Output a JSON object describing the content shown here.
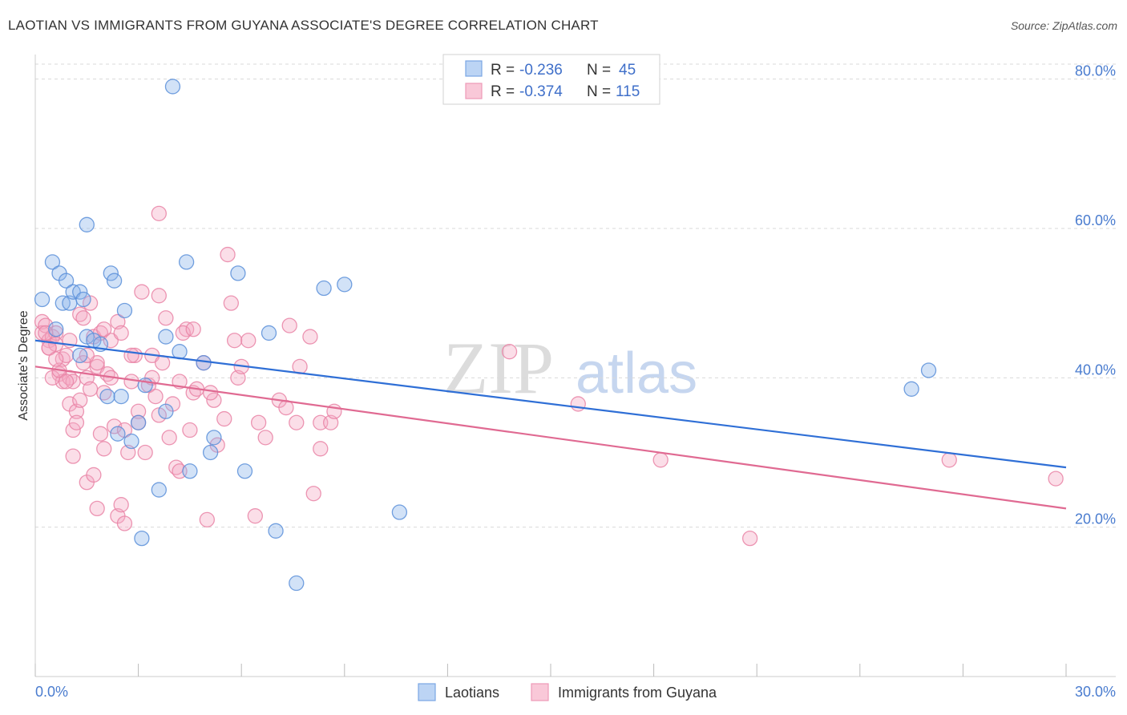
{
  "title": "LAOTIAN VS IMMIGRANTS FROM GUYANA ASSOCIATE'S DEGREE CORRELATION CHART",
  "source": "Source: ZipAtlas.com",
  "watermark": {
    "part1": "ZIP",
    "part2": "atlas"
  },
  "colors": {
    "blue": "#8ab4ea",
    "blue_stroke": "#5a8fd9",
    "blue_line": "#2f6fd6",
    "pink": "#f5a9c2",
    "pink_stroke": "#e984a6",
    "pink_line": "#e06a92",
    "grid": "#d9d9d9",
    "tick_label": "#4a7ccf"
  },
  "legend": {
    "rows": [
      {
        "r_label": "R = ",
        "r_value": "-0.236",
        "n_label": "N = ",
        "n_value": "45"
      },
      {
        "r_label": "R = ",
        "r_value": "-0.374",
        "n_label": "N = ",
        "n_value": "115"
      }
    ]
  },
  "chart_data": {
    "type": "scatter",
    "ylabel": "Associate's Degree",
    "x_tick_labels": [
      "0.0%",
      "30.0%"
    ],
    "y_tick_labels": [
      "20.0%",
      "40.0%",
      "60.0%",
      "80.0%"
    ],
    "xlim": [
      0,
      30
    ],
    "ylim": [
      0,
      82
    ],
    "y_ticks": [
      20,
      40,
      60,
      80
    ],
    "grid": true,
    "legend_position": "top-center",
    "series": [
      {
        "name": "Laotians",
        "trend": {
          "x": [
            0,
            30
          ],
          "y": [
            45.0,
            28.0
          ]
        },
        "points": [
          [
            0.2,
            50.5
          ],
          [
            0.5,
            55.5
          ],
          [
            0.7,
            54.0
          ],
          [
            0.9,
            53.0
          ],
          [
            0.8,
            50.0
          ],
          [
            1.0,
            50.0
          ],
          [
            1.1,
            51.5
          ],
          [
            1.3,
            51.5
          ],
          [
            1.4,
            50.5
          ],
          [
            1.5,
            45.5
          ],
          [
            1.7,
            45.0
          ],
          [
            1.9,
            44.5
          ],
          [
            1.3,
            43.0
          ],
          [
            1.5,
            60.5
          ],
          [
            2.2,
            54.0
          ],
          [
            2.3,
            53.0
          ],
          [
            2.6,
            49.0
          ],
          [
            2.1,
            37.5
          ],
          [
            2.5,
            37.5
          ],
          [
            2.4,
            32.5
          ],
          [
            2.8,
            31.5
          ],
          [
            3.0,
            34.0
          ],
          [
            3.2,
            39.0
          ],
          [
            3.1,
            18.5
          ],
          [
            3.6,
            25.0
          ],
          [
            3.8,
            45.5
          ],
          [
            3.8,
            35.5
          ],
          [
            4.2,
            43.5
          ],
          [
            4.4,
            55.5
          ],
          [
            4.5,
            27.5
          ],
          [
            4.9,
            42.0
          ],
          [
            5.2,
            32.0
          ],
          [
            5.1,
            30.0
          ],
          [
            5.9,
            54.0
          ],
          [
            6.1,
            27.5
          ],
          [
            6.8,
            46.0
          ],
          [
            7.0,
            19.5
          ],
          [
            7.6,
            12.5
          ],
          [
            8.4,
            52.0
          ],
          [
            9.0,
            52.5
          ],
          [
            10.6,
            22.0
          ],
          [
            4.0,
            79.0
          ],
          [
            25.5,
            38.5
          ],
          [
            26.0,
            41.0
          ],
          [
            0.6,
            46.5
          ]
        ]
      },
      {
        "name": "Immigrants from Guyana",
        "trend": {
          "x": [
            0,
            30
          ],
          "y": [
            41.5,
            22.5
          ]
        },
        "points": [
          [
            0.2,
            47.5
          ],
          [
            0.2,
            46.0
          ],
          [
            0.3,
            47.0
          ],
          [
            0.4,
            45.0
          ],
          [
            0.4,
            44.0
          ],
          [
            0.5,
            45.5
          ],
          [
            0.6,
            46.0
          ],
          [
            0.6,
            44.5
          ],
          [
            0.7,
            40.5
          ],
          [
            0.8,
            42.5
          ],
          [
            0.8,
            39.5
          ],
          [
            0.9,
            43.0
          ],
          [
            1.0,
            40.0
          ],
          [
            1.0,
            36.5
          ],
          [
            1.1,
            39.5
          ],
          [
            1.1,
            33.0
          ],
          [
            1.2,
            35.5
          ],
          [
            1.2,
            34.0
          ],
          [
            1.3,
            37.0
          ],
          [
            1.3,
            48.5
          ],
          [
            1.4,
            48.0
          ],
          [
            1.4,
            42.0
          ],
          [
            1.5,
            40.0
          ],
          [
            1.5,
            26.0
          ],
          [
            1.6,
            38.5
          ],
          [
            1.6,
            50.0
          ],
          [
            1.7,
            45.5
          ],
          [
            1.7,
            27.0
          ],
          [
            1.8,
            41.5
          ],
          [
            1.8,
            42.0
          ],
          [
            1.9,
            46.0
          ],
          [
            1.9,
            32.5
          ],
          [
            2.0,
            30.5
          ],
          [
            2.0,
            38.0
          ],
          [
            2.1,
            40.5
          ],
          [
            2.2,
            40.0
          ],
          [
            2.2,
            45.0
          ],
          [
            2.3,
            33.5
          ],
          [
            2.4,
            47.5
          ],
          [
            2.4,
            21.5
          ],
          [
            2.5,
            23.0
          ],
          [
            2.6,
            33.0
          ],
          [
            2.7,
            30.0
          ],
          [
            2.8,
            39.5
          ],
          [
            2.9,
            43.0
          ],
          [
            3.0,
            35.5
          ],
          [
            3.0,
            34.0
          ],
          [
            3.1,
            51.5
          ],
          [
            3.2,
            30.0
          ],
          [
            3.3,
            39.0
          ],
          [
            3.4,
            43.0
          ],
          [
            3.5,
            37.5
          ],
          [
            3.6,
            51.0
          ],
          [
            3.6,
            35.0
          ],
          [
            3.7,
            42.0
          ],
          [
            3.8,
            48.0
          ],
          [
            3.9,
            32.0
          ],
          [
            4.0,
            36.5
          ],
          [
            4.1,
            28.0
          ],
          [
            4.2,
            39.5
          ],
          [
            4.2,
            27.5
          ],
          [
            4.4,
            46.5
          ],
          [
            4.5,
            33.0
          ],
          [
            4.6,
            38.0
          ],
          [
            4.7,
            38.5
          ],
          [
            4.9,
            42.0
          ],
          [
            5.0,
            21.0
          ],
          [
            5.2,
            37.0
          ],
          [
            5.3,
            31.0
          ],
          [
            5.5,
            34.5
          ],
          [
            5.7,
            50.0
          ],
          [
            5.8,
            45.0
          ],
          [
            5.9,
            40.0
          ],
          [
            6.0,
            41.5
          ],
          [
            6.4,
            21.5
          ],
          [
            6.5,
            34.0
          ],
          [
            6.7,
            32.0
          ],
          [
            7.1,
            37.0
          ],
          [
            7.3,
            36.0
          ],
          [
            7.6,
            34.0
          ],
          [
            7.7,
            41.5
          ],
          [
            8.0,
            45.5
          ],
          [
            8.1,
            24.5
          ],
          [
            8.3,
            34.0
          ],
          [
            8.6,
            34.0
          ],
          [
            8.7,
            35.5
          ],
          [
            0.5,
            40.0
          ],
          [
            0.7,
            41.0
          ],
          [
            1.1,
            29.5
          ],
          [
            2.6,
            20.5
          ],
          [
            3.6,
            62.0
          ],
          [
            5.6,
            56.5
          ],
          [
            4.3,
            46.0
          ],
          [
            2.8,
            43.0
          ],
          [
            1.0,
            45.0
          ],
          [
            0.4,
            44.0
          ],
          [
            0.3,
            46.0
          ],
          [
            0.6,
            42.5
          ],
          [
            0.9,
            39.5
          ],
          [
            1.5,
            43.0
          ],
          [
            2.0,
            46.5
          ],
          [
            2.5,
            46.0
          ],
          [
            3.4,
            40.0
          ],
          [
            4.6,
            46.5
          ],
          [
            5.1,
            38.0
          ],
          [
            6.2,
            45.0
          ],
          [
            7.4,
            47.0
          ],
          [
            8.3,
            30.5
          ],
          [
            13.8,
            43.5
          ],
          [
            15.8,
            36.5
          ],
          [
            18.2,
            29.0
          ],
          [
            20.8,
            18.5
          ],
          [
            26.6,
            29.0
          ],
          [
            29.7,
            26.5
          ],
          [
            1.8,
            22.5
          ]
        ]
      }
    ]
  }
}
